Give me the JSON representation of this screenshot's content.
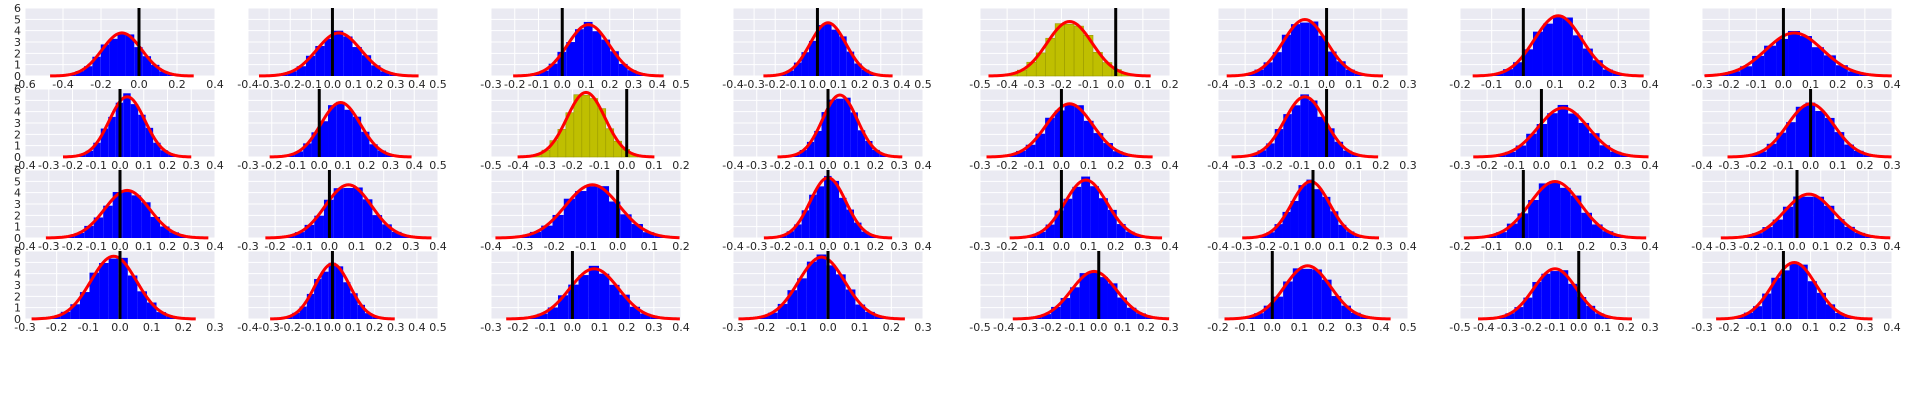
{
  "colors": {
    "panel_background": "#EAEAF2",
    "grid": "#ffffff",
    "histogram_default": "#0000FF",
    "histogram_highlight": "#BFBF00",
    "fit_curve": "#FF0000",
    "reference_line": "#000000"
  },
  "chart_data": {
    "type": "histogram-grid",
    "rows": 4,
    "cols": 8,
    "shared_y_ticks": [
      "0",
      "1",
      "2",
      "3",
      "4",
      "5",
      "6"
    ],
    "ylim": [
      0,
      6
    ],
    "grid": true,
    "panels": [
      {
        "xlim": [
          -0.6,
          0.4
        ],
        "x_ticks": [
          "-0.6",
          "-0.4",
          "-0.2",
          "0.0",
          "0.2",
          "0.4"
        ],
        "mean": -0.09,
        "sd": 0.105,
        "ref_x": 0.0,
        "highlight": false
      },
      {
        "xlim": [
          -0.4,
          0.5
        ],
        "x_ticks": [
          "-0.4",
          "-0.3",
          "-0.2",
          "-0.1",
          "0.0",
          "0.1",
          "0.2",
          "0.3",
          "0.4",
          "0.5"
        ],
        "mean": 0.03,
        "sd": 0.105,
        "ref_x": 0.0,
        "highlight": false
      },
      {
        "xlim": [
          -0.3,
          0.5
        ],
        "x_ticks": [
          "-0.3",
          "-0.2",
          "-0.1",
          "0.0",
          "0.1",
          "0.2",
          "0.3",
          "0.4",
          "0.5"
        ],
        "mean": 0.11,
        "sd": 0.088,
        "ref_x": 0.0,
        "highlight": false
      },
      {
        "xlim": [
          -0.4,
          0.5
        ],
        "x_ticks": [
          "-0.4",
          "-0.3",
          "-0.2",
          "-0.1",
          "0.0",
          "0.1",
          "0.2",
          "0.3",
          "0.4",
          "0.5"
        ],
        "mean": 0.05,
        "sd": 0.085,
        "ref_x": 0.0,
        "highlight": false
      },
      {
        "xlim": [
          -0.5,
          0.2
        ],
        "x_ticks": [
          "-0.5",
          "-0.4",
          "-0.3",
          "-0.2",
          "-0.1",
          "0.0",
          "0.1",
          "0.2"
        ],
        "mean": -0.17,
        "sd": 0.083,
        "ref_x": 0.0,
        "highlight": true
      },
      {
        "xlim": [
          -0.4,
          0.3
        ],
        "x_ticks": [
          "-0.4",
          "-0.3",
          "-0.2",
          "-0.1",
          "0.0",
          "0.1",
          "0.2",
          "0.3"
        ],
        "mean": -0.08,
        "sd": 0.08,
        "ref_x": 0.0,
        "highlight": false
      },
      {
        "xlim": [
          -0.2,
          0.4
        ],
        "x_ticks": [
          "-0.2",
          "-0.1",
          "0.0",
          "0.1",
          "0.2",
          "0.3",
          "0.4"
        ],
        "mean": 0.11,
        "sd": 0.075,
        "ref_x": 0.0,
        "highlight": false
      },
      {
        "xlim": [
          -0.3,
          0.4
        ],
        "x_ticks": [
          "-0.3",
          "-0.2",
          "-0.1",
          "0.0",
          "0.1",
          "0.2",
          "0.3",
          "0.4"
        ],
        "mean": 0.04,
        "sd": 0.105,
        "ref_x": 0.0,
        "highlight": false
      },
      {
        "xlim": [
          -0.4,
          0.4
        ],
        "x_ticks": [
          "-0.4",
          "-0.3",
          "-0.2",
          "-0.1",
          "0.0",
          "0.1",
          "0.2",
          "0.3",
          "0.4"
        ],
        "mean": 0.03,
        "sd": 0.075,
        "ref_x": 0.0,
        "highlight": false
      },
      {
        "xlim": [
          -0.3,
          0.5
        ],
        "x_ticks": [
          "-0.3",
          "-0.2",
          "-0.1",
          "0.0",
          "0.1",
          "0.2",
          "0.3",
          "0.4",
          "0.5"
        ],
        "mean": 0.09,
        "sd": 0.083,
        "ref_x": 0.0,
        "highlight": false
      },
      {
        "xlim": [
          -0.5,
          0.2
        ],
        "x_ticks": [
          "-0.5",
          "-0.4",
          "-0.3",
          "-0.2",
          "-0.1",
          "0.0",
          "0.1",
          "0.2"
        ],
        "mean": -0.15,
        "sd": 0.07,
        "ref_x": 0.0,
        "highlight": true
      },
      {
        "xlim": [
          -0.4,
          0.4
        ],
        "x_ticks": [
          "-0.4",
          "-0.3",
          "-0.2",
          "-0.1",
          "0.0",
          "0.1",
          "0.2",
          "0.3",
          "0.4"
        ],
        "mean": 0.05,
        "sd": 0.073,
        "ref_x": 0.0,
        "highlight": false
      },
      {
        "xlim": [
          -0.3,
          0.4
        ],
        "x_ticks": [
          "-0.3",
          "-0.2",
          "-0.1",
          "0.0",
          "0.1",
          "0.2",
          "0.3",
          "0.4"
        ],
        "mean": 0.03,
        "sd": 0.085,
        "ref_x": 0.0,
        "highlight": false
      },
      {
        "xlim": [
          -0.4,
          0.3
        ],
        "x_ticks": [
          "-0.4",
          "-0.3",
          "-0.2",
          "-0.1",
          "0.0",
          "0.1",
          "0.2",
          "0.3"
        ],
        "mean": -0.08,
        "sd": 0.075,
        "ref_x": 0.0,
        "highlight": false
      },
      {
        "xlim": [
          -0.3,
          0.4
        ],
        "x_ticks": [
          "-0.3",
          "-0.2",
          "-0.1",
          "0.0",
          "0.1",
          "0.2",
          "0.3",
          "0.4"
        ],
        "mean": 0.08,
        "sd": 0.092,
        "ref_x": 0.0,
        "highlight": false
      },
      {
        "xlim": [
          -0.4,
          0.3
        ],
        "x_ticks": [
          "-0.4",
          "-0.3",
          "-0.2",
          "-0.1",
          "0.0",
          "0.1",
          "0.2",
          "0.3"
        ],
        "mean": 0.0,
        "sd": 0.085,
        "ref_x": 0.0,
        "highlight": false
      },
      {
        "xlim": [
          -0.4,
          0.4
        ],
        "x_ticks": [
          "-0.4",
          "-0.3",
          "-0.2",
          "-0.1",
          "0.0",
          "0.1",
          "0.2",
          "0.3",
          "0.4"
        ],
        "mean": 0.03,
        "sd": 0.095,
        "ref_x": 0.0,
        "highlight": false
      },
      {
        "xlim": [
          -0.3,
          0.4
        ],
        "x_ticks": [
          "-0.3",
          "-0.2",
          "-0.1",
          "0.0",
          "0.1",
          "0.2",
          "0.3",
          "0.4"
        ],
        "mean": 0.07,
        "sd": 0.085,
        "ref_x": 0.0,
        "highlight": false
      },
      {
        "xlim": [
          -0.4,
          0.2
        ],
        "x_ticks": [
          "-0.4",
          "-0.3",
          "-0.2",
          "-0.1",
          "0.0",
          "0.1",
          "0.2"
        ],
        "mean": -0.08,
        "sd": 0.085,
        "ref_x": 0.0,
        "highlight": false
      },
      {
        "xlim": [
          -0.4,
          0.4
        ],
        "x_ticks": [
          "-0.4",
          "-0.3",
          "-0.2",
          "-0.1",
          "0.0",
          "0.1",
          "0.2",
          "0.3",
          "0.4"
        ],
        "mean": 0.0,
        "sd": 0.075,
        "ref_x": 0.0,
        "highlight": false
      },
      {
        "xlim": [
          -0.3,
          0.4
        ],
        "x_ticks": [
          "-0.3",
          "-0.2",
          "-0.1",
          "0.0",
          "0.1",
          "0.2",
          "0.3",
          "0.4"
        ],
        "mean": 0.09,
        "sd": 0.078,
        "ref_x": 0.0,
        "highlight": false
      },
      {
        "xlim": [
          -0.4,
          0.4
        ],
        "x_ticks": [
          "-0.4",
          "-0.3",
          "-0.2",
          "-0.1",
          "0.0",
          "0.1",
          "0.2",
          "0.3",
          "0.4"
        ],
        "mean": -0.01,
        "sd": 0.08,
        "ref_x": 0.0,
        "highlight": false
      },
      {
        "xlim": [
          -0.2,
          0.4
        ],
        "x_ticks": [
          "-0.2",
          "-0.1",
          "0.0",
          "0.1",
          "0.2",
          "0.3",
          "0.4"
        ],
        "mean": 0.1,
        "sd": 0.08,
        "ref_x": 0.0,
        "highlight": false
      },
      {
        "xlim": [
          -0.4,
          0.4
        ],
        "x_ticks": [
          "-0.4",
          "-0.3",
          "-0.2",
          "-0.1",
          "0.0",
          "0.1",
          "0.2",
          "0.3",
          "0.4"
        ],
        "mean": 0.05,
        "sd": 0.103,
        "ref_x": 0.0,
        "highlight": false
      },
      {
        "xlim": [
          -0.3,
          0.3
        ],
        "x_ticks": [
          "-0.3",
          "-0.2",
          "-0.1",
          "0.0",
          "0.1",
          "0.2",
          "0.3"
        ],
        "mean": -0.02,
        "sd": 0.072,
        "ref_x": 0.0,
        "highlight": false
      },
      {
        "xlim": [
          -0.4,
          0.5
        ],
        "x_ticks": [
          "-0.4",
          "-0.3",
          "-0.2",
          "-0.1",
          "0.0",
          "0.1",
          "0.2",
          "0.3",
          "0.4",
          "0.5"
        ],
        "mean": 0.0,
        "sd": 0.082,
        "ref_x": 0.0,
        "highlight": false
      },
      {
        "xlim": [
          -0.3,
          0.4
        ],
        "x_ticks": [
          "-0.3",
          "-0.2",
          "-0.1",
          "0.0",
          "0.1",
          "0.2",
          "0.3",
          "0.4"
        ],
        "mean": 0.08,
        "sd": 0.09,
        "ref_x": 0.0,
        "highlight": false
      },
      {
        "xlim": [
          -0.3,
          0.3
        ],
        "x_ticks": [
          "-0.3",
          "-0.2",
          "-0.1",
          "0.0",
          "0.1",
          "0.2",
          "0.3"
        ],
        "mean": -0.02,
        "sd": 0.073,
        "ref_x": 0.0,
        "highlight": false
      },
      {
        "xlim": [
          -0.5,
          0.3
        ],
        "x_ticks": [
          "-0.5",
          "-0.4",
          "-0.3",
          "-0.2",
          "-0.1",
          "0.0",
          "0.1",
          "0.2",
          "0.3"
        ],
        "mean": -0.02,
        "sd": 0.095,
        "ref_x": 0.0,
        "highlight": false
      },
      {
        "xlim": [
          -0.2,
          0.5
        ],
        "x_ticks": [
          "-0.2",
          "-0.1",
          "0.0",
          "0.1",
          "0.2",
          "0.3",
          "0.4",
          "0.5"
        ],
        "mean": 0.13,
        "sd": 0.085,
        "ref_x": 0.0,
        "highlight": false
      },
      {
        "xlim": [
          -0.5,
          0.3
        ],
        "x_ticks": [
          "-0.5",
          "-0.4",
          "-0.3",
          "-0.2",
          "-0.1",
          "0.0",
          "0.1",
          "0.2",
          "0.3"
        ],
        "mean": -0.1,
        "sd": 0.09,
        "ref_x": 0.0,
        "highlight": false
      },
      {
        "xlim": [
          -0.3,
          0.4
        ],
        "x_ticks": [
          "-0.3",
          "-0.2",
          "-0.1",
          "0.0",
          "0.1",
          "0.2",
          "0.3",
          "0.4"
        ],
        "mean": 0.04,
        "sd": 0.08,
        "ref_x": 0.0,
        "highlight": false
      }
    ]
  }
}
